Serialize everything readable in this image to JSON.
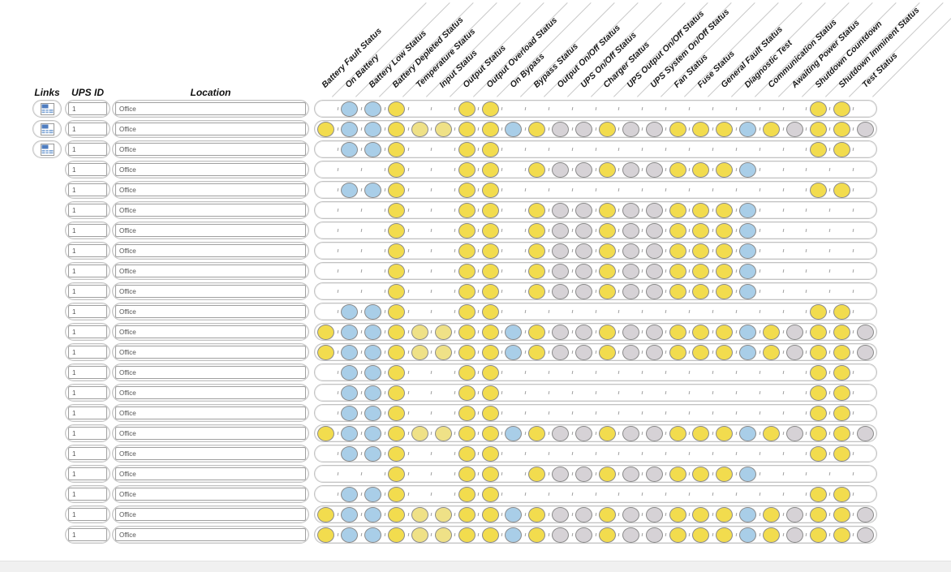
{
  "table": {
    "left_headers": {
      "links": "Links",
      "ups_id": "UPS ID",
      "location": "Location"
    },
    "columns": [
      "Battery Fault Status",
      "On Battery",
      "Battery Low Status",
      "Battery Depleted Status",
      "Temperature Status",
      "Input Status",
      "Output Status",
      "Output Overload Status",
      "On Bypass",
      "Bypass Status",
      "Output On/Off Status",
      "UPS On/Off Status",
      "Charger Status",
      "UPS Output On/Off Status",
      "UPS System On/Off Status",
      "Fan Status",
      "Fuse Status",
      "General Fault Status",
      "Diagnostic Test",
      "Communication Status",
      "Awaiting Power Status",
      "Shutdown Countdown",
      "Shutdown Imminent Status",
      "Test Status"
    ],
    "indicator_colors": {
      "Y": "#F2DC4E",
      "y": "#EFE187",
      "B": "#A9CEE8",
      "G": "#D6D2D6",
      "border": "#8A8A8A"
    },
    "links_icon": "table-links-icon",
    "patterns": {
      "A": [
        "",
        "B",
        "B",
        "Y",
        "",
        "",
        "Y",
        "Y",
        "",
        "",
        "",
        "",
        "",
        "",
        "",
        "",
        "",
        "",
        "",
        "",
        "",
        "Y",
        "Y",
        ""
      ],
      "B": [
        "Y",
        "B",
        "B",
        "Y",
        "y",
        "y",
        "Y",
        "Y",
        "B",
        "Y",
        "G",
        "G",
        "Y",
        "G",
        "G",
        "Y",
        "Y",
        "Y",
        "B",
        "Y",
        "G",
        "Y",
        "Y",
        "G"
      ],
      "C": [
        "",
        "",
        "",
        "Y",
        "",
        "",
        "Y",
        "Y",
        "",
        "Y",
        "G",
        "G",
        "Y",
        "G",
        "G",
        "Y",
        "Y",
        "Y",
        "B",
        "",
        "",
        "",
        "",
        ""
      ]
    },
    "rows": [
      {
        "links": true,
        "ups_id": "1",
        "location": "Office",
        "pattern": "A"
      },
      {
        "links": true,
        "ups_id": "1",
        "location": "Office",
        "pattern": "B"
      },
      {
        "links": true,
        "ups_id": "1",
        "location": "Office",
        "pattern": "A"
      },
      {
        "links": false,
        "ups_id": "1",
        "location": "Office",
        "pattern": "C"
      },
      {
        "links": false,
        "ups_id": "1",
        "location": "Office",
        "pattern": "A"
      },
      {
        "links": false,
        "ups_id": "1",
        "location": "Office",
        "pattern": "C"
      },
      {
        "links": false,
        "ups_id": "1",
        "location": "Office",
        "pattern": "C"
      },
      {
        "links": false,
        "ups_id": "1",
        "location": "Office",
        "pattern": "C"
      },
      {
        "links": false,
        "ups_id": "1",
        "location": "Office",
        "pattern": "C"
      },
      {
        "links": false,
        "ups_id": "1",
        "location": "Office",
        "pattern": "C"
      },
      {
        "links": false,
        "ups_id": "1",
        "location": "Office",
        "pattern": "A"
      },
      {
        "links": false,
        "ups_id": "1",
        "location": "Office",
        "pattern": "B"
      },
      {
        "links": false,
        "ups_id": "1",
        "location": "Office",
        "pattern": "B"
      },
      {
        "links": false,
        "ups_id": "1",
        "location": "Office",
        "pattern": "A"
      },
      {
        "links": false,
        "ups_id": "1",
        "location": "Office",
        "pattern": "A"
      },
      {
        "links": false,
        "ups_id": "1",
        "location": "Office",
        "pattern": "A"
      },
      {
        "links": false,
        "ups_id": "1",
        "location": "Office",
        "pattern": "B"
      },
      {
        "links": false,
        "ups_id": "1",
        "location": "Office",
        "pattern": "A"
      },
      {
        "links": false,
        "ups_id": "1",
        "location": "Office",
        "pattern": "C"
      },
      {
        "links": false,
        "ups_id": "1",
        "location": "Office",
        "pattern": "A"
      },
      {
        "links": false,
        "ups_id": "1",
        "location": "Office",
        "pattern": "B"
      },
      {
        "links": false,
        "ups_id": "1",
        "location": "Office",
        "pattern": "B"
      }
    ]
  }
}
